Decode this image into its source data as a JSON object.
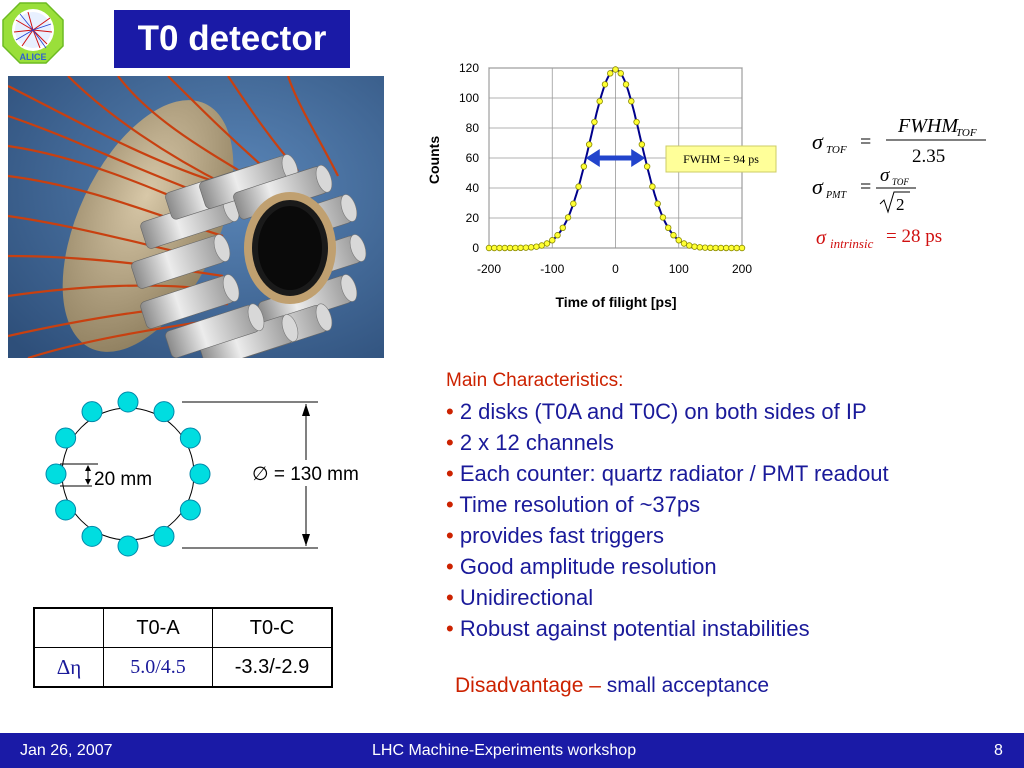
{
  "slide": {
    "title": "T0 detector"
  },
  "logo": {
    "text": "ALICE"
  },
  "photo": {
    "description_icon": "detector-photo"
  },
  "chart_data": {
    "type": "scatter",
    "xlabel": "Time of filight [ps]",
    "ylabel": "Counts",
    "xlim": [
      -200,
      200
    ],
    "ylim": [
      0,
      120
    ],
    "xticks": [
      -200,
      -100,
      0,
      100,
      200
    ],
    "yticks": [
      0,
      20,
      40,
      60,
      80,
      100,
      120
    ],
    "grid": true,
    "series": [
      {
        "shape": "gaussian",
        "mean": 0,
        "fwhm_ps": 94,
        "peak": 119,
        "x_min": -200,
        "x_max": 200,
        "n_points": 49,
        "color": "#ffff33",
        "line_color": "#00008b"
      }
    ],
    "annotation": {
      "text": "FWHM = 94 ps",
      "arrow_y": 60,
      "arrow_x": [
        -47,
        47
      ]
    }
  },
  "formulas": {
    "sigma": "σ",
    "eq": "=",
    "tof_sub": "TOF",
    "pmt_sub": "PMT",
    "fwhm": "FWHM",
    "denom1": "2.35",
    "denom2": "2",
    "intrinsic_sub": "intrinsic",
    "intrinsic_val": "= 28 ps"
  },
  "ring_diagram": {
    "inner_label": "20",
    "inner_unit": "mm",
    "outer_label": "∅ = 130 mm",
    "circle_color": "#00dde0"
  },
  "characteristics": {
    "heading": "Main Characteristics:",
    "bullet": "•",
    "items": [
      "2 disks (T0A and T0C) on both sides of IP",
      "2 x 12 channels",
      "Each counter: quartz radiator / PMT readout",
      "Time resolution of ~37ps",
      "provides fast triggers",
      "Good amplitude resolution",
      "Unidirectional",
      "Robust against potential instabilities"
    ]
  },
  "disadvantage": {
    "label": "Disadvantage –",
    "text": "small acceptance"
  },
  "table": {
    "headers": [
      "",
      "T0-A",
      "T0-C"
    ],
    "row_label": "Δη",
    "row_values": [
      "5.0/4.5",
      "-3.3/-2.9"
    ]
  },
  "footer": {
    "date": "Jan 26, 2007",
    "event": "LHC Machine-Experiments workshop",
    "page": "8"
  }
}
